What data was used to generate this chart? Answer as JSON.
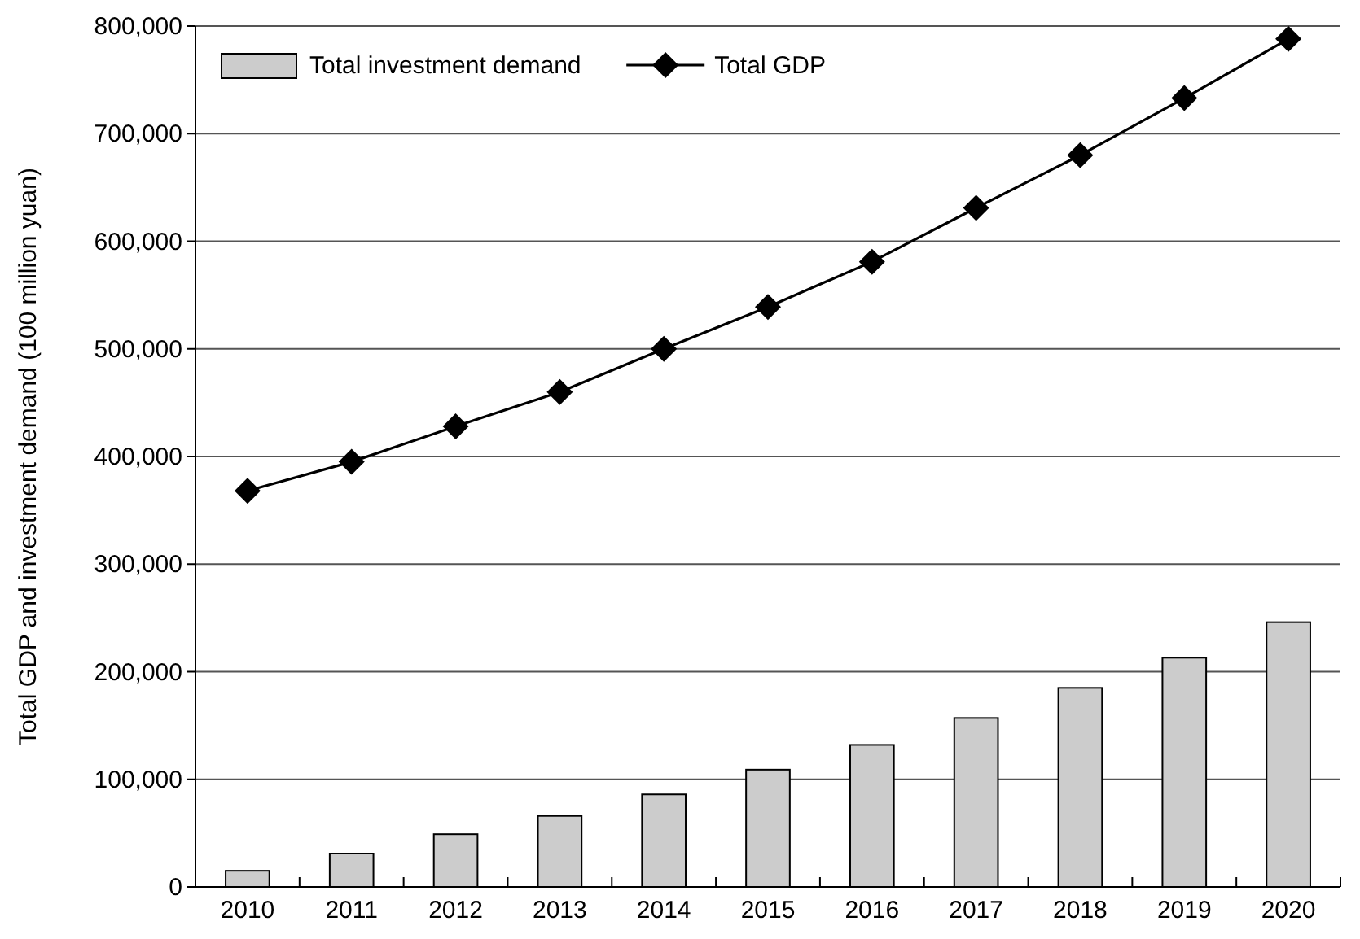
{
  "chart_data": {
    "type": "bar",
    "ylabel": "Total GDP and investment demand (100 million yuan)",
    "categories": [
      "2010",
      "2011",
      "2012",
      "2013",
      "2014",
      "2015",
      "2016",
      "2017",
      "2018",
      "2019",
      "2020"
    ],
    "series": [
      {
        "name": "Total investment demand",
        "color": "#cccccc",
        "values": [
          15000,
          31000,
          49000,
          66000,
          86000,
          109000,
          132000,
          157000,
          185000,
          213000,
          246000
        ]
      },
      {
        "name": "Total GDP",
        "type": "line",
        "color": "#000000",
        "marker": "diamond",
        "values": [
          368000,
          395000,
          428000,
          460000,
          500000,
          539000,
          581000,
          631000,
          680000,
          733000,
          788000
        ]
      }
    ],
    "ylim": [
      0,
      800000
    ],
    "yticks": [
      {
        "value": 0,
        "label": "0"
      },
      {
        "value": 100000,
        "label": "100,000"
      },
      {
        "value": 200000,
        "label": "200,000"
      },
      {
        "value": 300000,
        "label": "300,000"
      },
      {
        "value": 400000,
        "label": "400,000"
      },
      {
        "value": 500000,
        "label": "500,000"
      },
      {
        "value": 600000,
        "label": "600,000"
      },
      {
        "value": 700000,
        "label": "700,000"
      },
      {
        "value": 800000,
        "label": "800,000"
      }
    ],
    "grid": "y",
    "legend": "top left"
  }
}
